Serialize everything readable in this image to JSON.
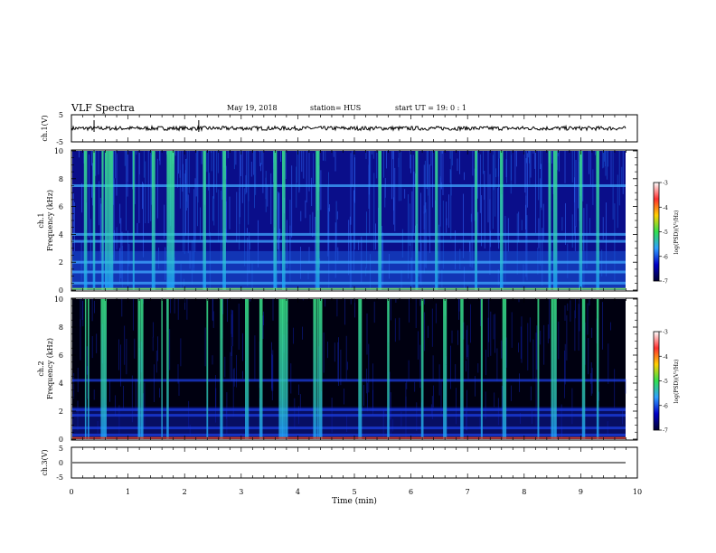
{
  "header": {
    "title": "VLF Spectra",
    "date": "May 19, 2018",
    "station": "station= HUS",
    "start": "start  UT  =   19: 0  : 1"
  },
  "colors": {
    "spec_bg": "#0a0e8a",
    "spec_dark": "#000010",
    "burst": "#3cf08c",
    "colorbar_stops": [
      "#ffffff",
      "#ff3030",
      "#ffd000",
      "#30e050",
      "#30a0ff",
      "#0000c8",
      "#000030"
    ]
  },
  "chart_data": [
    {
      "type": "line",
      "panel": "ch1-waveform",
      "ylabel": "ch.1(V)",
      "ylim": [
        -5,
        5
      ],
      "yticks": [
        "5",
        "-5"
      ],
      "xlim": [
        0,
        10
      ],
      "description_values": {
        "mean": 0,
        "amplitude": 0.8
      },
      "spikes_min": [
        0.4,
        2.25
      ]
    },
    {
      "type": "heatmap",
      "panel": "ch1-spectrogram",
      "ylabel": "ch.1",
      "ylabel2": "Frequency (kHz)",
      "ylim": [
        0,
        10
      ],
      "yticks": [
        "0",
        "2",
        "4",
        "6",
        "8",
        "10"
      ],
      "xlim": [
        0,
        10
      ],
      "data_end_min": 9.85,
      "colorbar": {
        "label": "log(PSD)(V²/Hz)",
        "range": [
          -7,
          -3
        ],
        "ticks": [
          "-3",
          "-4",
          "-5",
          "-6",
          "-7"
        ]
      },
      "base": "dense",
      "bursts_min": [
        0.25,
        0.4,
        0.55,
        0.62,
        0.68,
        0.72,
        1.1,
        1.45,
        1.7,
        1.75,
        1.8,
        2.35,
        2.7,
        3.6,
        3.75,
        4.35,
        5.45,
        6.1,
        6.45,
        7.15,
        7.6,
        8.45,
        8.55,
        9.0,
        9.3
      ],
      "bands_khz": [
        0.5,
        1.3,
        2.0,
        3.5,
        4.0,
        7.5
      ]
    },
    {
      "type": "heatmap",
      "panel": "ch2-spectrogram",
      "ylabel": "ch.2",
      "ylabel2": "Frequency (kHz)",
      "ylim": [
        0,
        10
      ],
      "yticks": [
        "0",
        "2",
        "4",
        "6",
        "8",
        "10"
      ],
      "xlim": [
        0,
        10
      ],
      "data_end_min": 9.85,
      "colorbar": {
        "label": "log(PSD)(V²/Hz)",
        "range": [
          -7,
          -3
        ],
        "ticks": [
          "-3",
          "-4",
          "-5",
          "-6",
          "-7"
        ]
      },
      "base": "sparse",
      "bursts_min": [
        0.25,
        0.3,
        0.55,
        0.6,
        1.2,
        1.25,
        1.6,
        1.7,
        2.4,
        2.65,
        3.1,
        3.35,
        3.7,
        3.75,
        3.8,
        4.3,
        4.35,
        4.4,
        5.1,
        5.6,
        6.2,
        6.6,
        6.9,
        7.25,
        7.65,
        8.25,
        8.5,
        8.55,
        9.05,
        9.3
      ],
      "bands_khz": [
        0.3,
        0.8,
        1.7,
        2.1,
        4.2
      ]
    },
    {
      "type": "line",
      "panel": "ch3-waveform",
      "ylabel": "ch.3(V)",
      "ylim": [
        -5,
        5
      ],
      "yticks": [
        "5",
        "0",
        "-5"
      ],
      "xlim": [
        0,
        10
      ],
      "value": 0,
      "xlabel": "Time  (min)",
      "xticks": [
        "0",
        "1",
        "2",
        "3",
        "4",
        "5",
        "6",
        "7",
        "8",
        "9",
        "10"
      ]
    }
  ]
}
